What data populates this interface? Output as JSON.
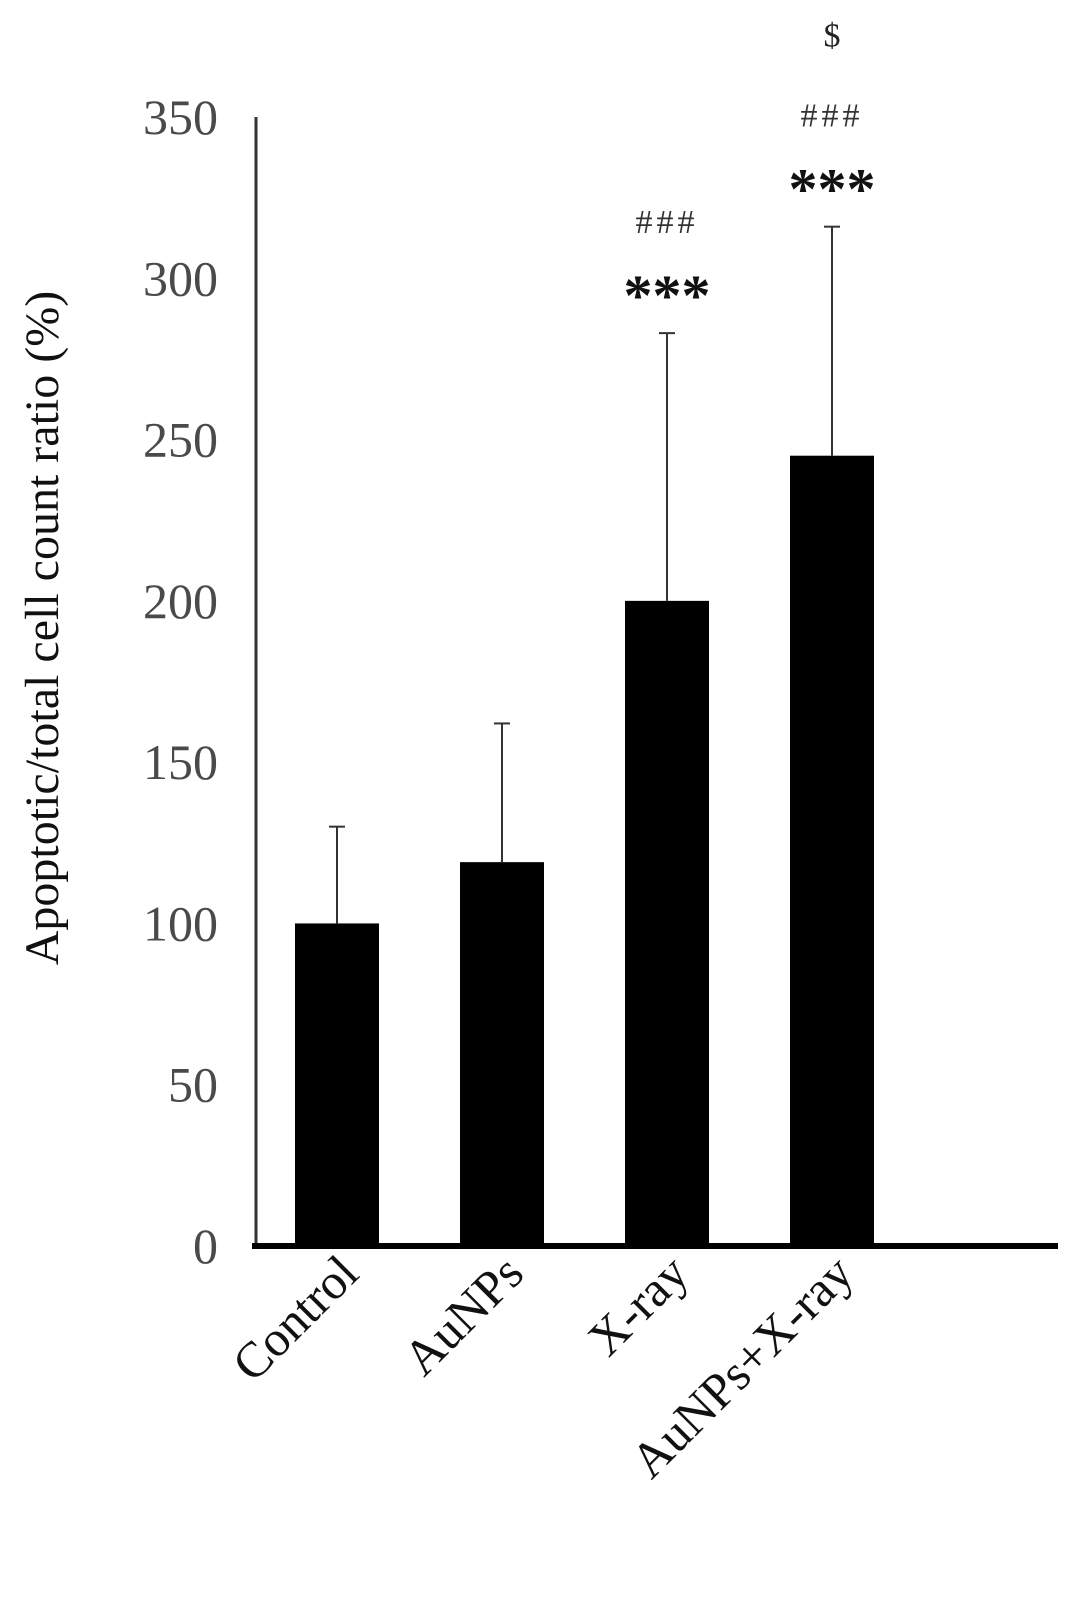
{
  "chart_data": {
    "type": "bar",
    "ylabel": "Apoptotic/total cell count ratio (%)",
    "xlabel": "",
    "ylim": [
      0,
      350
    ],
    "yticks": [
      0,
      50,
      100,
      150,
      200,
      250,
      300,
      350
    ],
    "categories": [
      "Control",
      "AuNPs",
      "X-ray",
      "AuNPs+X-ray"
    ],
    "values": [
      100,
      119,
      200,
      245
    ],
    "error_upper": [
      130,
      162,
      283,
      316
    ],
    "annotations": [
      {
        "category": "X-ray",
        "stars": "***",
        "hashes": "###",
        "dollar": ""
      },
      {
        "category": "AuNPs+X-ray",
        "stars": "***",
        "hashes": "###",
        "dollar": "$"
      }
    ],
    "bar_color": "#000000",
    "grid": false,
    "legend": "none"
  }
}
